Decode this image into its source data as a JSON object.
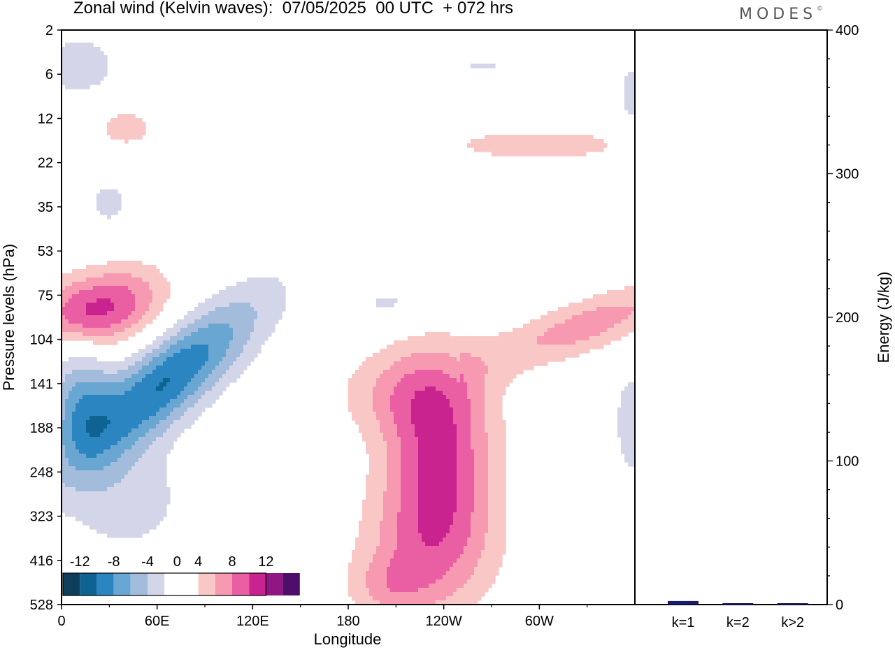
{
  "title": "Zonal wind (Kelvin waves):  07/05/2025  00 UTC  + 072 hrs",
  "brand": {
    "text": "MODES",
    "mark": "©"
  },
  "colors": {
    "neg": [
      "#0f3d5c",
      "#0f6392",
      "#2b85c0",
      "#6aa6d2",
      "#a3bcdc",
      "#d3d6e8"
    ],
    "pos": [
      "#f9c8c6",
      "#f79ab1",
      "#ea5fa4",
      "#c8238f",
      "#8e1783",
      "#4e0f6b"
    ],
    "bar": "#1a1a6b"
  },
  "chart_data": [
    {
      "type": "heatmap",
      "variable": "Zonal wind (Kelvin waves)",
      "xlabel": "Longitude",
      "ylabel": "Pressure levels (hPa)",
      "x_ticks": [
        "0",
        "60E",
        "120E",
        "180",
        "120W",
        "60W"
      ],
      "x_tick_values": [
        0,
        60,
        120,
        180,
        240,
        300
      ],
      "xlim": [
        0,
        360
      ],
      "y_ticks": [
        "2",
        "6",
        "12",
        "22",
        "35",
        "53",
        "75",
        "104",
        "141",
        "188",
        "248",
        "323",
        "416",
        "528"
      ],
      "colorbar": {
        "tick_labels": [
          "-12",
          "-8",
          "-4",
          "0",
          "4",
          "8",
          "12"
        ],
        "tick_values": [
          -12,
          -8,
          -4,
          0,
          4,
          8,
          12
        ],
        "levels": [
          -14,
          -12,
          -10,
          -8,
          -6,
          -4,
          -2,
          2,
          4,
          6,
          8,
          10,
          12,
          14
        ]
      },
      "features": [
        {
          "name": "negative tilted band",
          "lon": [
            0,
            130
          ],
          "level_idx": [
            6.0,
            9.5
          ],
          "peak": -10
        },
        {
          "name": "positive upper band",
          "lon": [
            0,
            50
          ],
          "level_idx": [
            5.4,
            7.2
          ],
          "peak": 8
        },
        {
          "name": "positive tropospheric plume",
          "lon": [
            190,
            275
          ],
          "level_idx": [
            7.0,
            13.0
          ],
          "peak": 8
        },
        {
          "name": "positive band east",
          "lon": [
            270,
            360
          ],
          "level_idx": [
            6.2,
            7.8
          ],
          "peak": 6
        }
      ]
    },
    {
      "type": "bar",
      "categories": [
        "k=1",
        "k=2",
        "k>2"
      ],
      "values": [
        2,
        0.5,
        0.3
      ],
      "ylabel": "Energy (J/kg)",
      "ylim": [
        0,
        400
      ],
      "y_ticks": [
        0,
        100,
        200,
        300,
        400
      ]
    }
  ]
}
